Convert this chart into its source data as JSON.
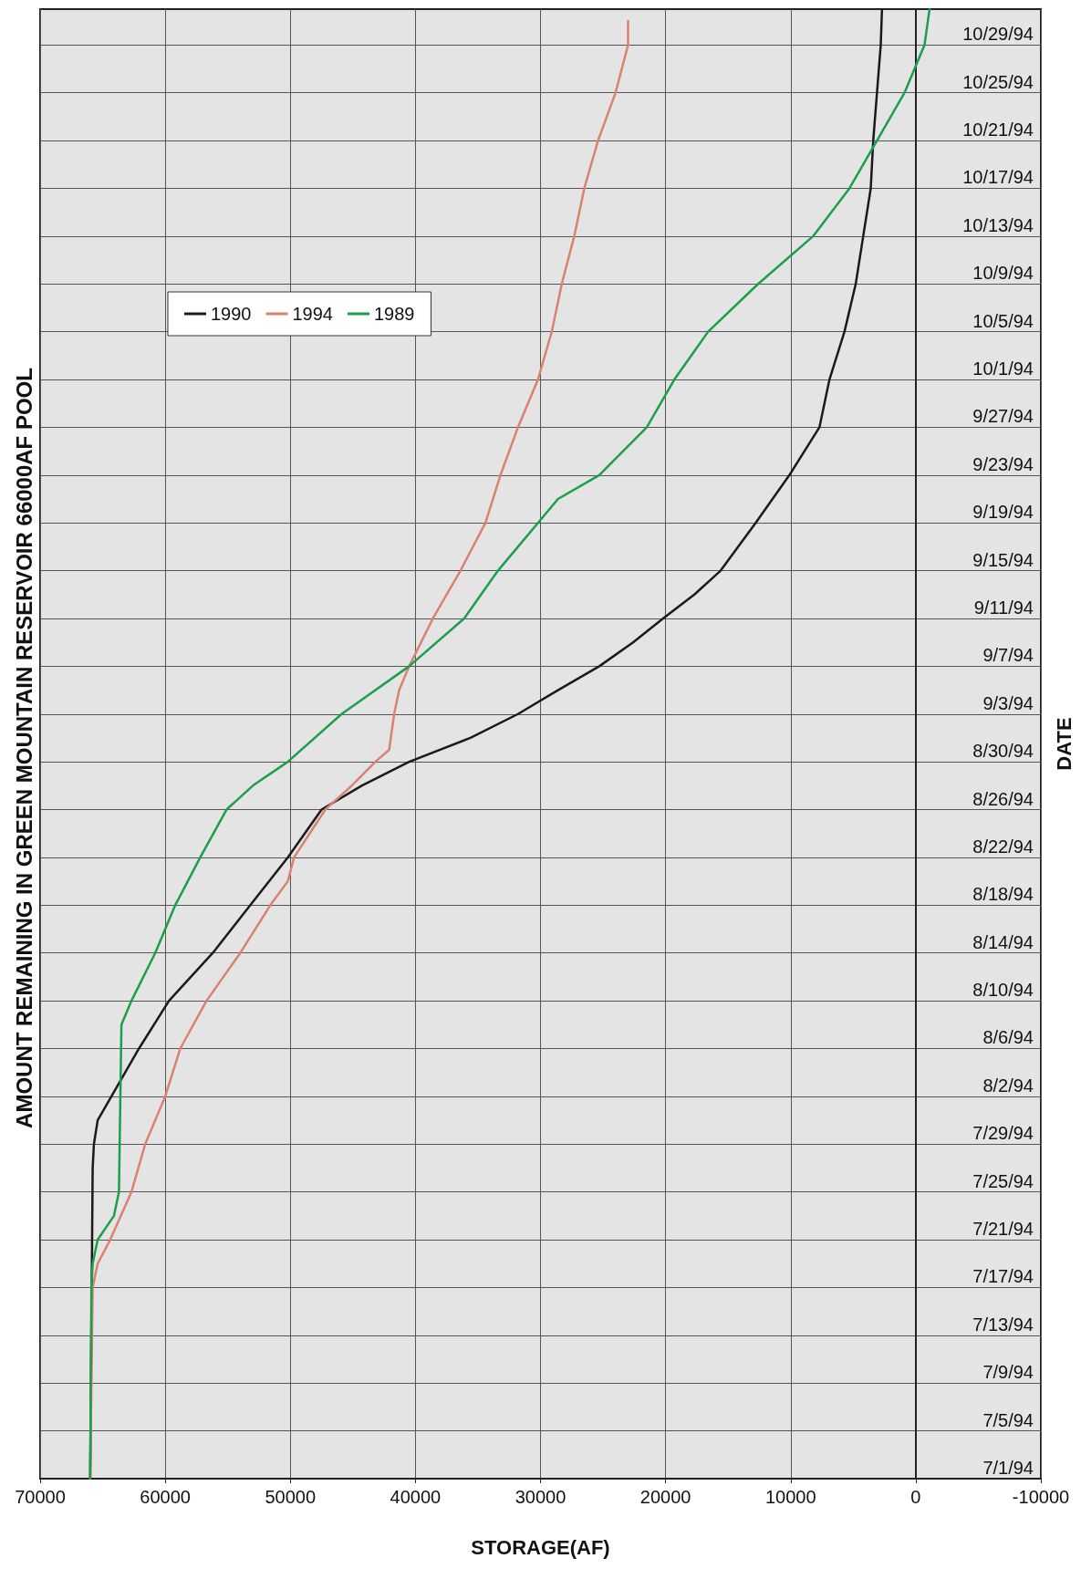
{
  "chart_data": {
    "type": "line",
    "title": "AMOUNT REMAINING IN GREEN MOUNTAIN RESERVOIR 66000AF POOL",
    "xlabel": "STORAGE(AF)",
    "ylabel": "DATE",
    "orientation": "horizontal",
    "series": [
      {
        "name": "1990",
        "color": "#1a1a1a",
        "x": [
          "1994-07-01",
          "1994-07-27",
          "1994-07-29",
          "1994-07-31",
          "1994-08-02",
          "1994-08-06",
          "1994-08-10",
          "1994-08-14",
          "1994-08-18",
          "1994-08-22",
          "1994-08-26",
          "1994-08-28",
          "1994-08-30",
          "1994-09-01",
          "1994-09-03",
          "1994-09-05",
          "1994-09-07",
          "1994-09-09",
          "1994-09-11",
          "1994-09-13",
          "1994-09-15",
          "1994-09-19",
          "1994-09-23",
          "1994-09-27",
          "1994-10-01",
          "1994-10-05",
          "1994-10-09",
          "1994-10-13",
          "1994-10-17",
          "1994-10-21",
          "1994-10-25",
          "1994-10-29",
          "1994-11-01"
        ],
        "values": [
          66000,
          65800,
          65700,
          65400,
          64300,
          62100,
          59700,
          56200,
          53200,
          50200,
          47500,
          44300,
          40500,
          35600,
          31800,
          28600,
          25300,
          22600,
          20200,
          17700,
          15600,
          12800,
          10100,
          7700,
          6900,
          5700,
          4800,
          4200,
          3600,
          3400,
          3100,
          2800,
          2700
        ]
      },
      {
        "name": "1994",
        "color": "#d9826f",
        "x": [
          "1994-07-01",
          "1994-07-17",
          "1994-07-19",
          "1994-07-21",
          "1994-07-25",
          "1994-07-29",
          "1994-08-02",
          "1994-08-06",
          "1994-08-10",
          "1994-08-14",
          "1994-08-18",
          "1994-08-20",
          "1994-08-22",
          "1994-08-26",
          "1994-08-28",
          "1994-08-30",
          "1994-08-31",
          "1994-09-03",
          "1994-09-05",
          "1994-09-07",
          "1994-09-11",
          "1994-09-15",
          "1994-09-19",
          "1994-09-23",
          "1994-09-27",
          "1994-10-01",
          "1994-10-05",
          "1994-10-09",
          "1994-10-13",
          "1994-10-17",
          "1994-10-21",
          "1994-10-25",
          "1994-10-29",
          "1994-10-31"
        ],
        "values": [
          66000,
          65800,
          65400,
          64400,
          62700,
          61600,
          60000,
          58800,
          56700,
          54000,
          51600,
          50200,
          49700,
          47200,
          45100,
          43200,
          42100,
          41700,
          41300,
          40500,
          38600,
          36400,
          34400,
          33200,
          31800,
          30200,
          29100,
          28300,
          27300,
          26500,
          25400,
          24000,
          23000,
          23000
        ]
      },
      {
        "name": "1989",
        "color": "#1c9e4c",
        "x": [
          "1994-07-01",
          "1994-07-17",
          "1994-07-19",
          "1994-07-21",
          "1994-07-23",
          "1994-07-25",
          "1994-08-08",
          "1994-08-10",
          "1994-08-14",
          "1994-08-18",
          "1994-08-22",
          "1994-08-26",
          "1994-08-28",
          "1994-08-30",
          "1994-09-03",
          "1994-09-07",
          "1994-09-11",
          "1994-09-15",
          "1994-09-17",
          "1994-09-19",
          "1994-09-21",
          "1994-09-23",
          "1994-09-27",
          "1994-10-01",
          "1994-10-05",
          "1994-10-09",
          "1994-10-13",
          "1994-10-17",
          "1994-10-21",
          "1994-10-25",
          "1994-10-29",
          "1994-11-01"
        ],
        "values": [
          66000,
          65900,
          65800,
          65400,
          64100,
          63700,
          63500,
          62700,
          60800,
          59200,
          57200,
          55100,
          53000,
          50200,
          45900,
          40500,
          36100,
          33400,
          31800,
          30200,
          28600,
          25300,
          21500,
          19300,
          16600,
          12600,
          8200,
          5300,
          3100,
          900,
          -700,
          -1100
        ]
      }
    ],
    "ylim": [
      "1994-07-01",
      "1994-11-01"
    ],
    "yticks": [
      {
        "value": "1994-07-01",
        "label": "7/1/94"
      },
      {
        "value": "1994-07-05",
        "label": "7/5/94"
      },
      {
        "value": "1994-07-09",
        "label": "7/9/94"
      },
      {
        "value": "1994-07-13",
        "label": "7/13/94"
      },
      {
        "value": "1994-07-17",
        "label": "7/17/94"
      },
      {
        "value": "1994-07-21",
        "label": "7/21/94"
      },
      {
        "value": "1994-07-25",
        "label": "7/25/94"
      },
      {
        "value": "1994-07-29",
        "label": "7/29/94"
      },
      {
        "value": "1994-08-02",
        "label": "8/2/94"
      },
      {
        "value": "1994-08-06",
        "label": "8/6/94"
      },
      {
        "value": "1994-08-10",
        "label": "8/10/94"
      },
      {
        "value": "1994-08-14",
        "label": "8/14/94"
      },
      {
        "value": "1994-08-18",
        "label": "8/18/94"
      },
      {
        "value": "1994-08-22",
        "label": "8/22/94"
      },
      {
        "value": "1994-08-26",
        "label": "8/26/94"
      },
      {
        "value": "1994-08-30",
        "label": "8/30/94"
      },
      {
        "value": "1994-09-03",
        "label": "9/3/94"
      },
      {
        "value": "1994-09-07",
        "label": "9/7/94"
      },
      {
        "value": "1994-09-11",
        "label": "9/11/94"
      },
      {
        "value": "1994-09-15",
        "label": "9/15/94"
      },
      {
        "value": "1994-09-19",
        "label": "9/19/94"
      },
      {
        "value": "1994-09-23",
        "label": "9/23/94"
      },
      {
        "value": "1994-09-27",
        "label": "9/27/94"
      },
      {
        "value": "1994-10-01",
        "label": "10/1/94"
      },
      {
        "value": "1994-10-05",
        "label": "10/5/94"
      },
      {
        "value": "1994-10-09",
        "label": "10/9/94"
      },
      {
        "value": "1994-10-13",
        "label": "10/13/94"
      },
      {
        "value": "1994-10-17",
        "label": "10/17/94"
      },
      {
        "value": "1994-10-21",
        "label": "10/21/94"
      },
      {
        "value": "1994-10-25",
        "label": "10/25/94"
      },
      {
        "value": "1994-10-29",
        "label": "10/29/94"
      }
    ],
    "xlim": [
      70000,
      -10000
    ],
    "xticks": [
      70000,
      60000,
      50000,
      40000,
      30000,
      20000,
      10000,
      0,
      -10000
    ],
    "grid": true,
    "legend": "top left",
    "marker": "none",
    "line_style": "solid"
  }
}
